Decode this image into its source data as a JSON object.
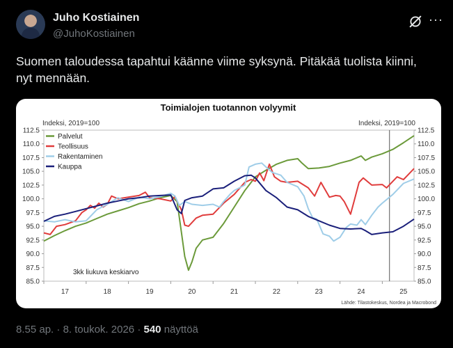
{
  "author": {
    "name": "Juho Kostiainen",
    "handle": "@JuhoKostiainen"
  },
  "tweet_text": "Suomen taloudessa tapahtui käänne viime syksynä. Pitäkää tuolista kiinni, nyt mennään.",
  "icons": {
    "grok": "grok-icon",
    "more": "more-options-icon"
  },
  "meta": {
    "time": "8.55 ap.",
    "sep": "·",
    "date": "8. toukok. 2026",
    "sep2": "·",
    "views": "540",
    "views_label": "näyttöä"
  },
  "chart_data": {
    "type": "line",
    "title": "Toimialojen tuotannon volyymit",
    "ylabel_left": "Indeksi, 2019=100",
    "ylabel_right": "Indeksi, 2019=100",
    "note": "3kk liukuva keskiarvo",
    "source": "Lähde: Tilastokeskus, Nordea ja Macrobond",
    "ylim": [
      85,
      112.5
    ],
    "yticks": [
      "112.5",
      "110.0",
      "107.5",
      "105.0",
      "102.5",
      "100.0",
      "97.5",
      "95.0",
      "92.5",
      "90.0",
      "87.5",
      "85.0"
    ],
    "xlim": [
      2017.0,
      2025.75
    ],
    "xticks": [
      {
        "label": "17",
        "x": 2017.5
      },
      {
        "label": "18",
        "x": 2018.5
      },
      {
        "label": "19",
        "x": 2019.5
      },
      {
        "label": "20",
        "x": 2020.5
      },
      {
        "label": "21",
        "x": 2021.5
      },
      {
        "label": "22",
        "x": 2022.5
      },
      {
        "label": "23",
        "x": 2023.5
      },
      {
        "label": "24",
        "x": 2024.5
      },
      {
        "label": "25",
        "x": 2025.5
      }
    ],
    "vline_x": 2025.17,
    "legend_position": "top-left",
    "series": [
      {
        "name": "Palvelut",
        "color": "#6b9a3a",
        "points": [
          [
            2017.0,
            92.3
          ],
          [
            2017.25,
            93.3
          ],
          [
            2017.5,
            94.2
          ],
          [
            2017.75,
            95.0
          ],
          [
            2018.0,
            95.6
          ],
          [
            2018.25,
            96.4
          ],
          [
            2018.5,
            97.2
          ],
          [
            2018.75,
            97.8
          ],
          [
            2019.0,
            98.4
          ],
          [
            2019.25,
            99.1
          ],
          [
            2019.5,
            99.6
          ],
          [
            2019.75,
            100.2
          ],
          [
            2020.0,
            100.6
          ],
          [
            2020.15,
            99.5
          ],
          [
            2020.25,
            94.0
          ],
          [
            2020.33,
            89.5
          ],
          [
            2020.42,
            87.0
          ],
          [
            2020.5,
            88.5
          ],
          [
            2020.6,
            91.0
          ],
          [
            2020.75,
            92.5
          ],
          [
            2021.0,
            93.0
          ],
          [
            2021.25,
            95.5
          ],
          [
            2021.5,
            98.5
          ],
          [
            2021.75,
            101.5
          ],
          [
            2022.0,
            104.0
          ],
          [
            2022.25,
            105.2
          ],
          [
            2022.5,
            106.3
          ],
          [
            2022.75,
            107.0
          ],
          [
            2023.0,
            107.3
          ],
          [
            2023.1,
            106.5
          ],
          [
            2023.25,
            105.5
          ],
          [
            2023.5,
            105.6
          ],
          [
            2023.75,
            105.9
          ],
          [
            2024.0,
            106.5
          ],
          [
            2024.25,
            107.0
          ],
          [
            2024.5,
            107.8
          ],
          [
            2024.6,
            107.0
          ],
          [
            2024.75,
            107.6
          ],
          [
            2025.0,
            108.2
          ],
          [
            2025.25,
            109.0
          ],
          [
            2025.5,
            110.2
          ],
          [
            2025.75,
            111.5
          ]
        ]
      },
      {
        "name": "Teollisuus",
        "color": "#e03c3c",
        "points": [
          [
            2017.0,
            93.8
          ],
          [
            2017.15,
            93.5
          ],
          [
            2017.3,
            95.0
          ],
          [
            2017.5,
            95.3
          ],
          [
            2017.75,
            96.0
          ],
          [
            2017.9,
            97.5
          ],
          [
            2018.0,
            98.0
          ],
          [
            2018.1,
            98.8
          ],
          [
            2018.2,
            98.3
          ],
          [
            2018.3,
            99.2
          ],
          [
            2018.4,
            98.5
          ],
          [
            2018.5,
            99.0
          ],
          [
            2018.6,
            100.5
          ],
          [
            2018.75,
            100.0
          ],
          [
            2019.0,
            100.3
          ],
          [
            2019.25,
            100.6
          ],
          [
            2019.4,
            101.2
          ],
          [
            2019.5,
            100.2
          ],
          [
            2019.75,
            100.0
          ],
          [
            2020.0,
            99.6
          ],
          [
            2020.1,
            100.4
          ],
          [
            2020.25,
            98.0
          ],
          [
            2020.33,
            95.2
          ],
          [
            2020.42,
            95.0
          ],
          [
            2020.6,
            96.5
          ],
          [
            2020.75,
            97.0
          ],
          [
            2021.0,
            97.2
          ],
          [
            2021.25,
            99.2
          ],
          [
            2021.5,
            100.8
          ],
          [
            2021.75,
            103.0
          ],
          [
            2021.9,
            103.5
          ],
          [
            2022.0,
            103.2
          ],
          [
            2022.1,
            104.7
          ],
          [
            2022.2,
            103.3
          ],
          [
            2022.33,
            106.3
          ],
          [
            2022.45,
            104.0
          ],
          [
            2022.6,
            103.2
          ],
          [
            2022.75,
            103.0
          ],
          [
            2023.0,
            103.2
          ],
          [
            2023.25,
            102.0
          ],
          [
            2023.4,
            100.5
          ],
          [
            2023.55,
            103.0
          ],
          [
            2023.75,
            100.3
          ],
          [
            2023.9,
            100.6
          ],
          [
            2024.0,
            100.5
          ],
          [
            2024.1,
            99.5
          ],
          [
            2024.25,
            97.2
          ],
          [
            2024.33,
            99.5
          ],
          [
            2024.45,
            103.0
          ],
          [
            2024.55,
            103.8
          ],
          [
            2024.75,
            102.5
          ],
          [
            2025.0,
            102.6
          ],
          [
            2025.1,
            102.0
          ],
          [
            2025.25,
            103.2
          ],
          [
            2025.35,
            104.0
          ],
          [
            2025.5,
            103.5
          ],
          [
            2025.6,
            104.3
          ],
          [
            2025.75,
            105.5
          ]
        ]
      },
      {
        "name": "Rakentaminen",
        "color": "#9fcde8",
        "points": [
          [
            2017.0,
            96.0
          ],
          [
            2017.25,
            95.8
          ],
          [
            2017.5,
            96.2
          ],
          [
            2017.75,
            95.8
          ],
          [
            2018.0,
            96.0
          ],
          [
            2018.25,
            98.0
          ],
          [
            2018.5,
            99.0
          ],
          [
            2018.75,
            100.2
          ],
          [
            2019.0,
            99.5
          ],
          [
            2019.25,
            100.3
          ],
          [
            2019.5,
            100.0
          ],
          [
            2019.75,
            100.4
          ],
          [
            2020.0,
            101.0
          ],
          [
            2020.1,
            100.5
          ],
          [
            2020.2,
            98.8
          ],
          [
            2020.33,
            99.5
          ],
          [
            2020.5,
            99.0
          ],
          [
            2020.75,
            98.8
          ],
          [
            2021.0,
            99.0
          ],
          [
            2021.15,
            98.5
          ],
          [
            2021.25,
            99.5
          ],
          [
            2021.4,
            100.8
          ],
          [
            2021.5,
            101.5
          ],
          [
            2021.75,
            102.5
          ],
          [
            2021.85,
            105.8
          ],
          [
            2022.0,
            106.3
          ],
          [
            2022.15,
            106.5
          ],
          [
            2022.25,
            105.8
          ],
          [
            2022.4,
            104.8
          ],
          [
            2022.6,
            104.3
          ],
          [
            2022.75,
            103.0
          ],
          [
            2023.0,
            102.2
          ],
          [
            2023.15,
            100.5
          ],
          [
            2023.25,
            98.2
          ],
          [
            2023.35,
            96.6
          ],
          [
            2023.45,
            96.3
          ],
          [
            2023.6,
            93.6
          ],
          [
            2023.75,
            93.2
          ],
          [
            2023.85,
            92.3
          ],
          [
            2024.0,
            93.0
          ],
          [
            2024.15,
            94.8
          ],
          [
            2024.25,
            95.4
          ],
          [
            2024.4,
            95.2
          ],
          [
            2024.5,
            96.2
          ],
          [
            2024.6,
            95.3
          ],
          [
            2024.75,
            97.0
          ],
          [
            2024.9,
            98.5
          ],
          [
            2025.0,
            99.2
          ],
          [
            2025.25,
            100.8
          ],
          [
            2025.5,
            102.8
          ],
          [
            2025.75,
            103.6
          ]
        ]
      },
      {
        "name": "Kauppa",
        "color": "#1a1f7a",
        "points": [
          [
            2017.0,
            95.9
          ],
          [
            2017.25,
            96.8
          ],
          [
            2017.5,
            97.2
          ],
          [
            2017.75,
            97.7
          ],
          [
            2018.0,
            98.2
          ],
          [
            2018.25,
            98.7
          ],
          [
            2018.5,
            99.2
          ],
          [
            2018.75,
            99.6
          ],
          [
            2019.0,
            100.0
          ],
          [
            2019.25,
            100.2
          ],
          [
            2019.5,
            100.5
          ],
          [
            2019.75,
            100.6
          ],
          [
            2020.0,
            100.7
          ],
          [
            2020.15,
            98.0
          ],
          [
            2020.25,
            97.3
          ],
          [
            2020.33,
            99.7
          ],
          [
            2020.5,
            100.2
          ],
          [
            2020.75,
            100.5
          ],
          [
            2021.0,
            101.8
          ],
          [
            2021.25,
            102.0
          ],
          [
            2021.5,
            103.2
          ],
          [
            2021.75,
            104.2
          ],
          [
            2021.9,
            104.3
          ],
          [
            2022.0,
            103.8
          ],
          [
            2022.25,
            101.5
          ],
          [
            2022.5,
            100.2
          ],
          [
            2022.75,
            98.5
          ],
          [
            2023.0,
            98.0
          ],
          [
            2023.25,
            96.8
          ],
          [
            2023.5,
            96.0
          ],
          [
            2023.75,
            95.2
          ],
          [
            2024.0,
            94.6
          ],
          [
            2024.25,
            94.5
          ],
          [
            2024.5,
            94.6
          ],
          [
            2024.6,
            94.2
          ],
          [
            2024.75,
            93.5
          ],
          [
            2025.0,
            93.8
          ],
          [
            2025.25,
            94.0
          ],
          [
            2025.5,
            95.0
          ],
          [
            2025.75,
            96.3
          ]
        ]
      }
    ]
  }
}
